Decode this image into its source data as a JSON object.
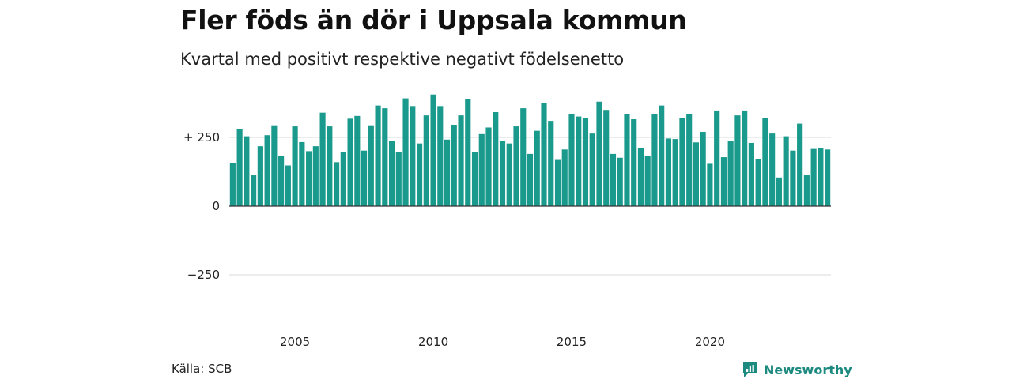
{
  "title": "Fler föds än dör i Uppsala kommun",
  "subtitle": "Kvartal med positivt respektive negativt födelsenetto",
  "source": "Källa: SCB",
  "brand": {
    "name": "Newsworthy",
    "icon": "newsworthy-logo-icon"
  },
  "colors": {
    "positive": "#1a9a8c",
    "axis": "#333333",
    "grid": "#d9d9d9",
    "brand": "#1d8a80"
  },
  "chart_data": {
    "type": "bar",
    "x_start": "2003 Q1",
    "y_ticks": [
      {
        "value": 250,
        "label": "+ 250"
      },
      {
        "value": 0,
        "label": "0"
      },
      {
        "value": -250,
        "label": "−250"
      }
    ],
    "x_ticks": [
      {
        "year": 2005,
        "label": "2005"
      },
      {
        "year": 2010,
        "label": "2010"
      },
      {
        "year": 2015,
        "label": "2015"
      },
      {
        "year": 2020,
        "label": "2020"
      }
    ],
    "ylim": [
      -370,
      410
    ],
    "grid": true,
    "values": [
      158,
      280,
      254,
      112,
      218,
      258,
      294,
      183,
      148,
      290,
      233,
      200,
      218,
      340,
      290,
      160,
      196,
      318,
      328,
      202,
      294,
      366,
      356,
      238,
      198,
      392,
      364,
      228,
      330,
      406,
      364,
      242,
      296,
      330,
      388,
      198,
      262,
      286,
      342,
      236,
      228,
      290,
      356,
      190,
      274,
      376,
      310,
      168,
      206,
      334,
      326,
      320,
      264,
      380,
      350,
      190,
      176,
      336,
      316,
      212,
      182,
      336,
      366,
      246,
      244,
      320,
      334,
      232,
      270,
      154,
      348,
      178,
      236,
      330,
      348,
      230,
      170,
      320,
      264,
      104,
      254,
      202,
      300,
      112,
      208,
      212,
      206
    ]
  }
}
